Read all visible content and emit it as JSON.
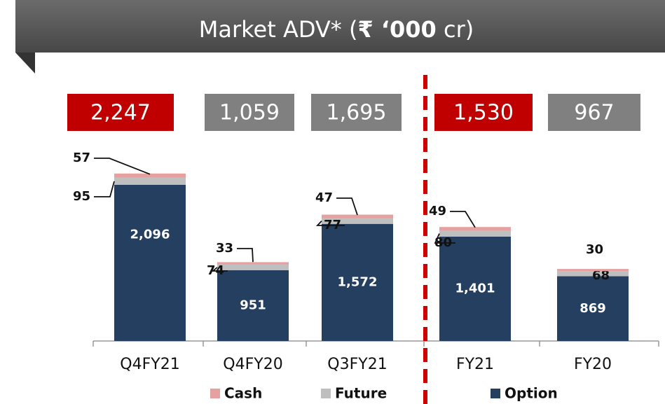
{
  "chart_data": {
    "type": "stacked_bar",
    "title_parts": [
      "Market ADV* (",
      "₹ ‘000",
      " cr)"
    ],
    "categories": [
      "Q4FY21",
      "Q4FY20",
      "Q3FY21",
      "FY21",
      "FY20"
    ],
    "total_labels": [
      "2,247",
      "1,059",
      "1,695",
      "1,530",
      "967"
    ],
    "total_colors": [
      "#c00000",
      "#808080",
      "#808080",
      "#c00000",
      "#808080"
    ],
    "series": [
      {
        "name": "Option",
        "color": "#243f60",
        "values": [
          2096,
          951,
          1572,
          1401,
          869
        ],
        "value_labels": [
          "2,096",
          "951",
          "1,572",
          "1,401",
          "869"
        ]
      },
      {
        "name": "Future",
        "color": "#bfbfbf",
        "values": [
          95,
          74,
          77,
          80,
          68
        ]
      },
      {
        "name": "Cash",
        "color": "#e6a0a0",
        "values": [
          57,
          33,
          47,
          49,
          30
        ]
      }
    ],
    "legend_order": [
      2,
      1,
      0
    ],
    "ylim": [
      0,
      2500
    ]
  }
}
